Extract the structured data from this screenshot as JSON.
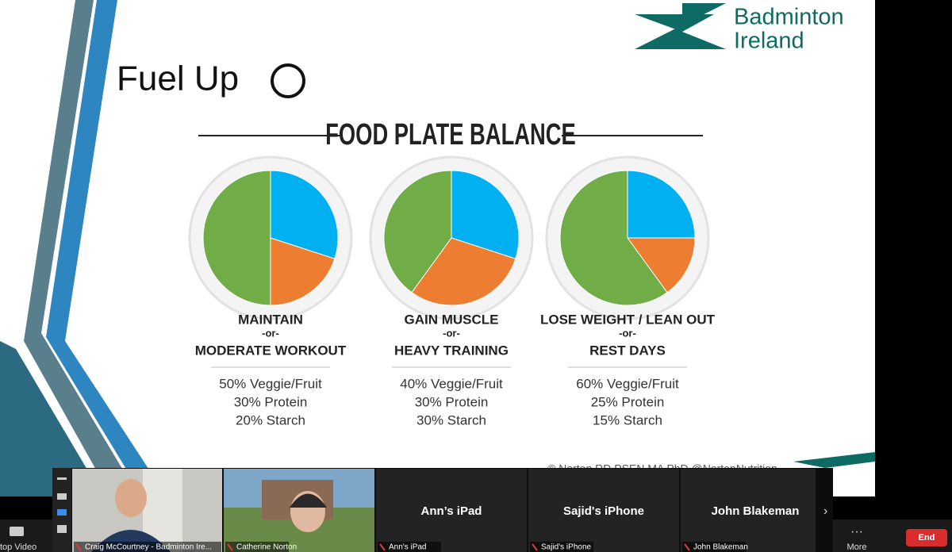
{
  "slide": {
    "title": "Fuel Up",
    "logo": [
      "Badminton",
      "Ireland"
    ],
    "heading": "FOOD PLATE BALANCE",
    "credit": "© Norton RD PSEN MA PhD @NortonNutrition",
    "plates": [
      {
        "label_top": "MAINTAIN",
        "or": "-or-",
        "label_bottom": "MODERATE WORKOUT",
        "slices": [
          {
            "name": "Protein",
            "value": 30,
            "color": "#00b0f0"
          },
          {
            "name": "Starch",
            "value": 20,
            "color": "#ed7d31"
          },
          {
            "name": "Veggie/Fruit",
            "value": 50,
            "color": "#70ad47"
          }
        ],
        "lines": [
          "50% Veggie/Fruit",
          "30% Protein",
          "20% Starch"
        ]
      },
      {
        "label_top": "GAIN MUSCLE",
        "or": "-or-",
        "label_bottom": "HEAVY TRAINING",
        "slices": [
          {
            "name": "Protein",
            "value": 30,
            "color": "#00b0f0"
          },
          {
            "name": "Starch",
            "value": 30,
            "color": "#ed7d31"
          },
          {
            "name": "Veggie/Fruit",
            "value": 40,
            "color": "#70ad47"
          }
        ],
        "lines": [
          "40% Veggie/Fruit",
          "30% Protein",
          "30% Starch"
        ]
      },
      {
        "label_top": "LOSE WEIGHT / LEAN OUT",
        "or": "-or-",
        "label_bottom": "REST DAYS",
        "slices": [
          {
            "name": "Protein",
            "value": 25,
            "color": "#00b0f0"
          },
          {
            "name": "Starch",
            "value": 15,
            "color": "#ed7d31"
          },
          {
            "name": "Veggie/Fruit",
            "value": 60,
            "color": "#70ad47"
          }
        ],
        "lines": [
          "60% Veggie/Fruit",
          "25% Protein",
          "15% Starch"
        ]
      }
    ]
  },
  "participants": [
    {
      "name": "Craig McCourtney - Badminton Ire..."
    },
    {
      "name": "Catherine Norton"
    },
    {
      "display": "Ann’s iPad",
      "name": "Ann's iPad"
    },
    {
      "display": "Sajid's iPhone",
      "name": "Sajid's iPhone"
    },
    {
      "display": "John Blakeman",
      "name": "John Blakeman"
    }
  ],
  "toolbar": {
    "left": "top Video",
    "more": "More",
    "end": "End"
  }
}
